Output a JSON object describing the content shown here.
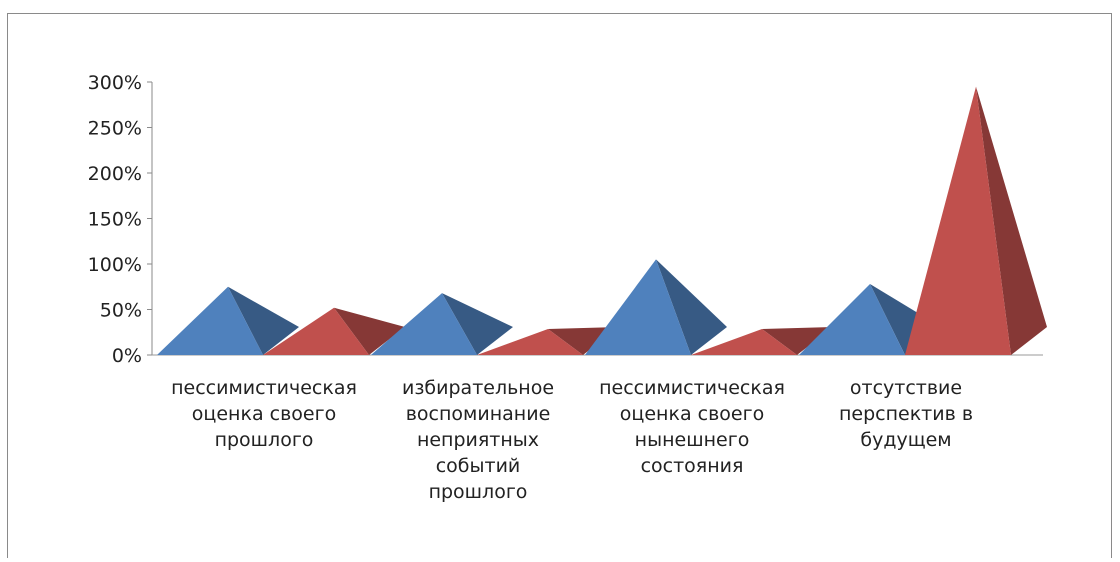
{
  "chart_data": {
    "type": "bar",
    "categories": [
      "пессимистическая\nоценка своего\nпрошлого",
      "избирательное\nвоспоминание\nнеприятных\nсобытий\nпрошлого",
      "пессимистическая\nоценка своего\nнынешнего\nсостояния",
      "отсутствие\nперспектив в\nбудущем"
    ],
    "series": [
      {
        "values": [
          0.75,
          0.68,
          1.05,
          0.78
        ],
        "color": "#4f81bd"
      },
      {
        "values": [
          0.52,
          0.0,
          0.0,
          2.95
        ],
        "color": "#c0504d"
      }
    ],
    "ylim": [
      0,
      3
    ],
    "yticks": [
      "0%",
      "50%",
      "100%",
      "150%",
      "200%",
      "250%",
      "300%"
    ],
    "grid": false,
    "legend": "none",
    "style": "3d-pyramid"
  }
}
